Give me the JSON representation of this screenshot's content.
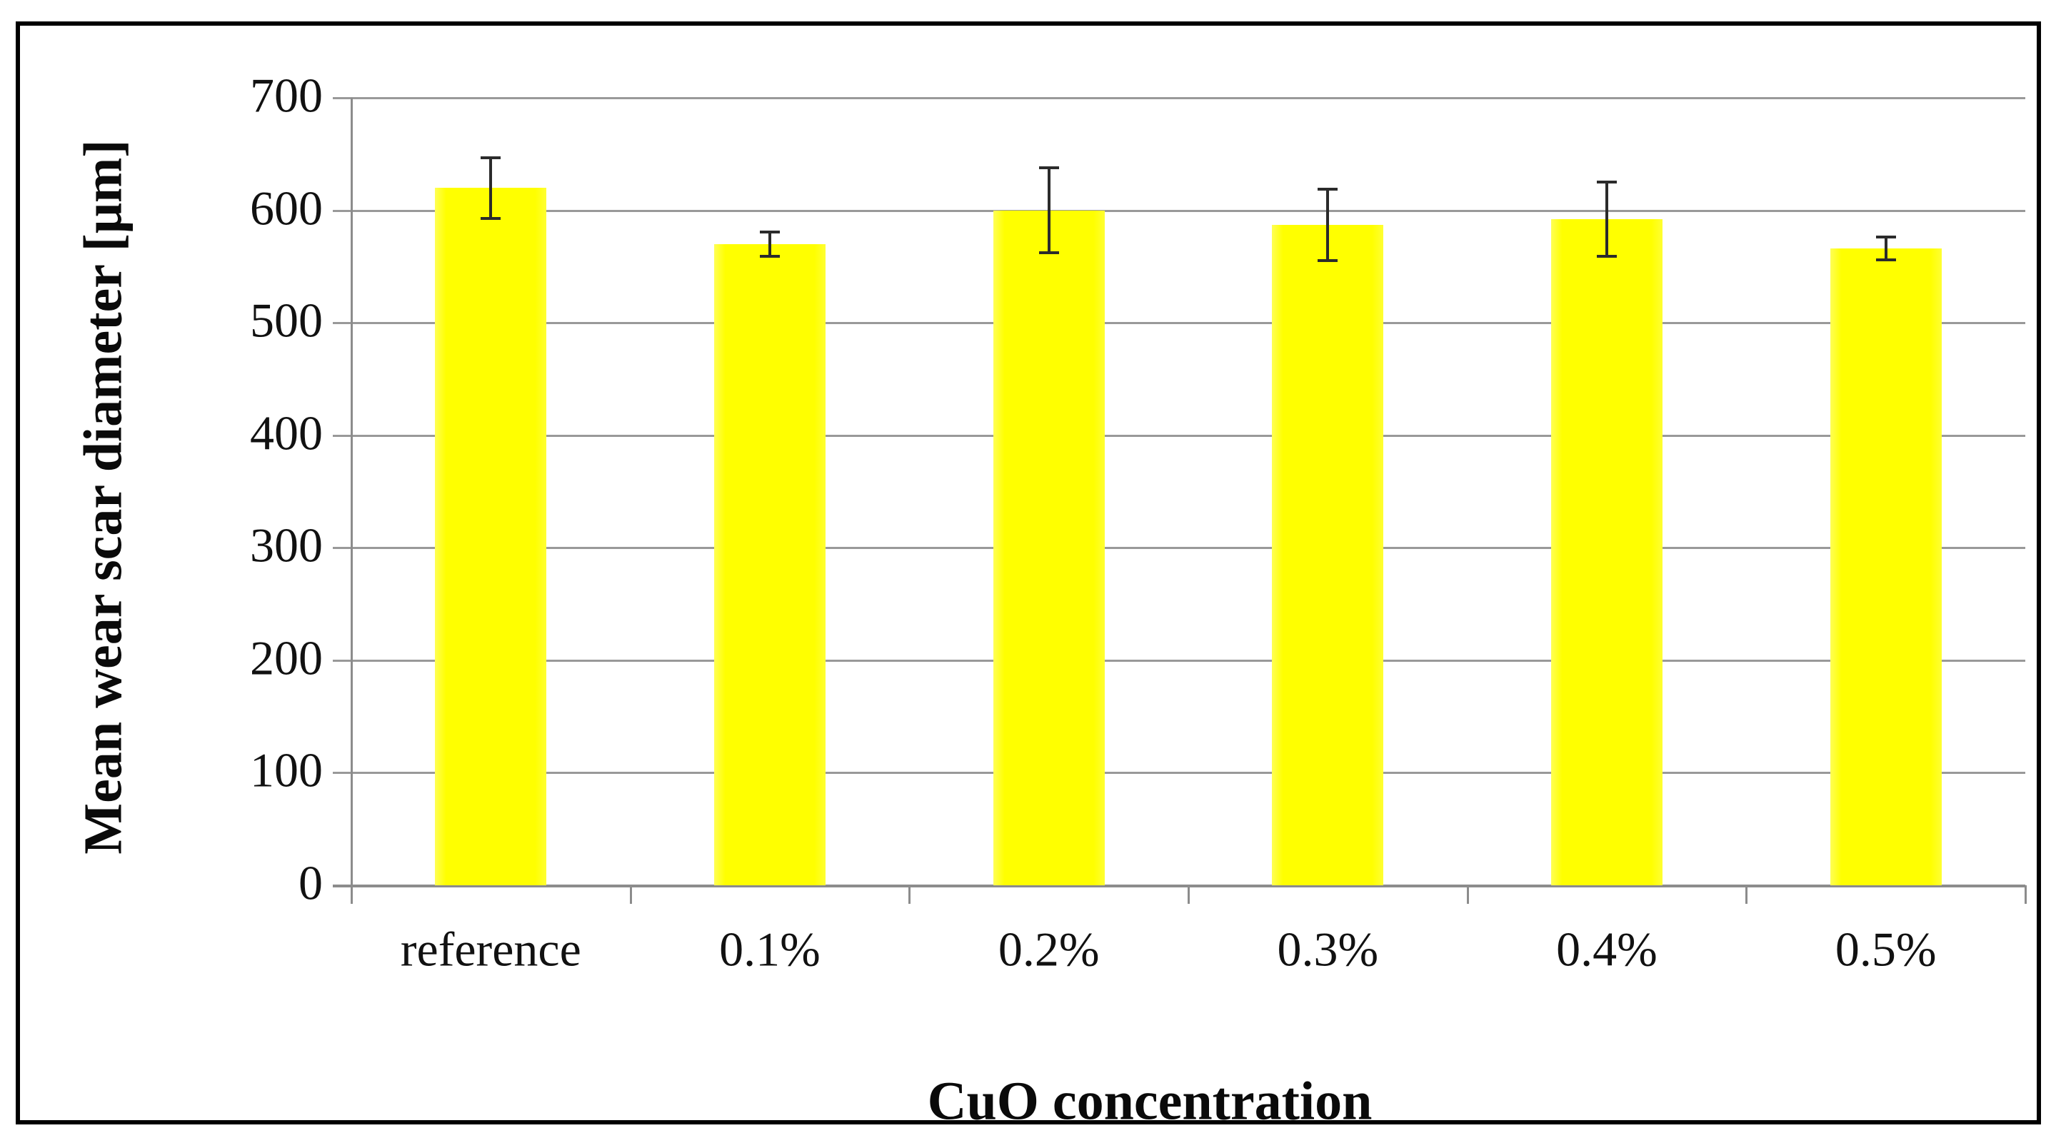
{
  "figure": {
    "background_color": "#ffffff",
    "frame_border_color": "#000000"
  },
  "chart_data": {
    "type": "bar",
    "title": "",
    "categories": [
      "reference",
      "0.1%",
      "0.2%",
      "0.3%",
      "0.4%",
      "0.5%"
    ],
    "values": [
      620,
      570,
      600,
      587,
      592,
      566
    ],
    "error_bars": [
      27,
      11,
      38,
      32,
      33,
      10
    ],
    "xlabel": "CuO concentration",
    "ylabel": "Mean wear scar diameter [μm]",
    "yticks": [
      0,
      100,
      200,
      300,
      400,
      500,
      600,
      700
    ],
    "ylim": [
      0,
      700
    ],
    "grid": "horizontal",
    "legend_position": "none",
    "bar_color": "#ffff00",
    "grid_color": "#999999",
    "axis_color": "#8c8c8c",
    "error_bar_color": "#2b2b2b",
    "tick_label_color": "#111111",
    "axis_title_color": "#0a0a0a"
  }
}
